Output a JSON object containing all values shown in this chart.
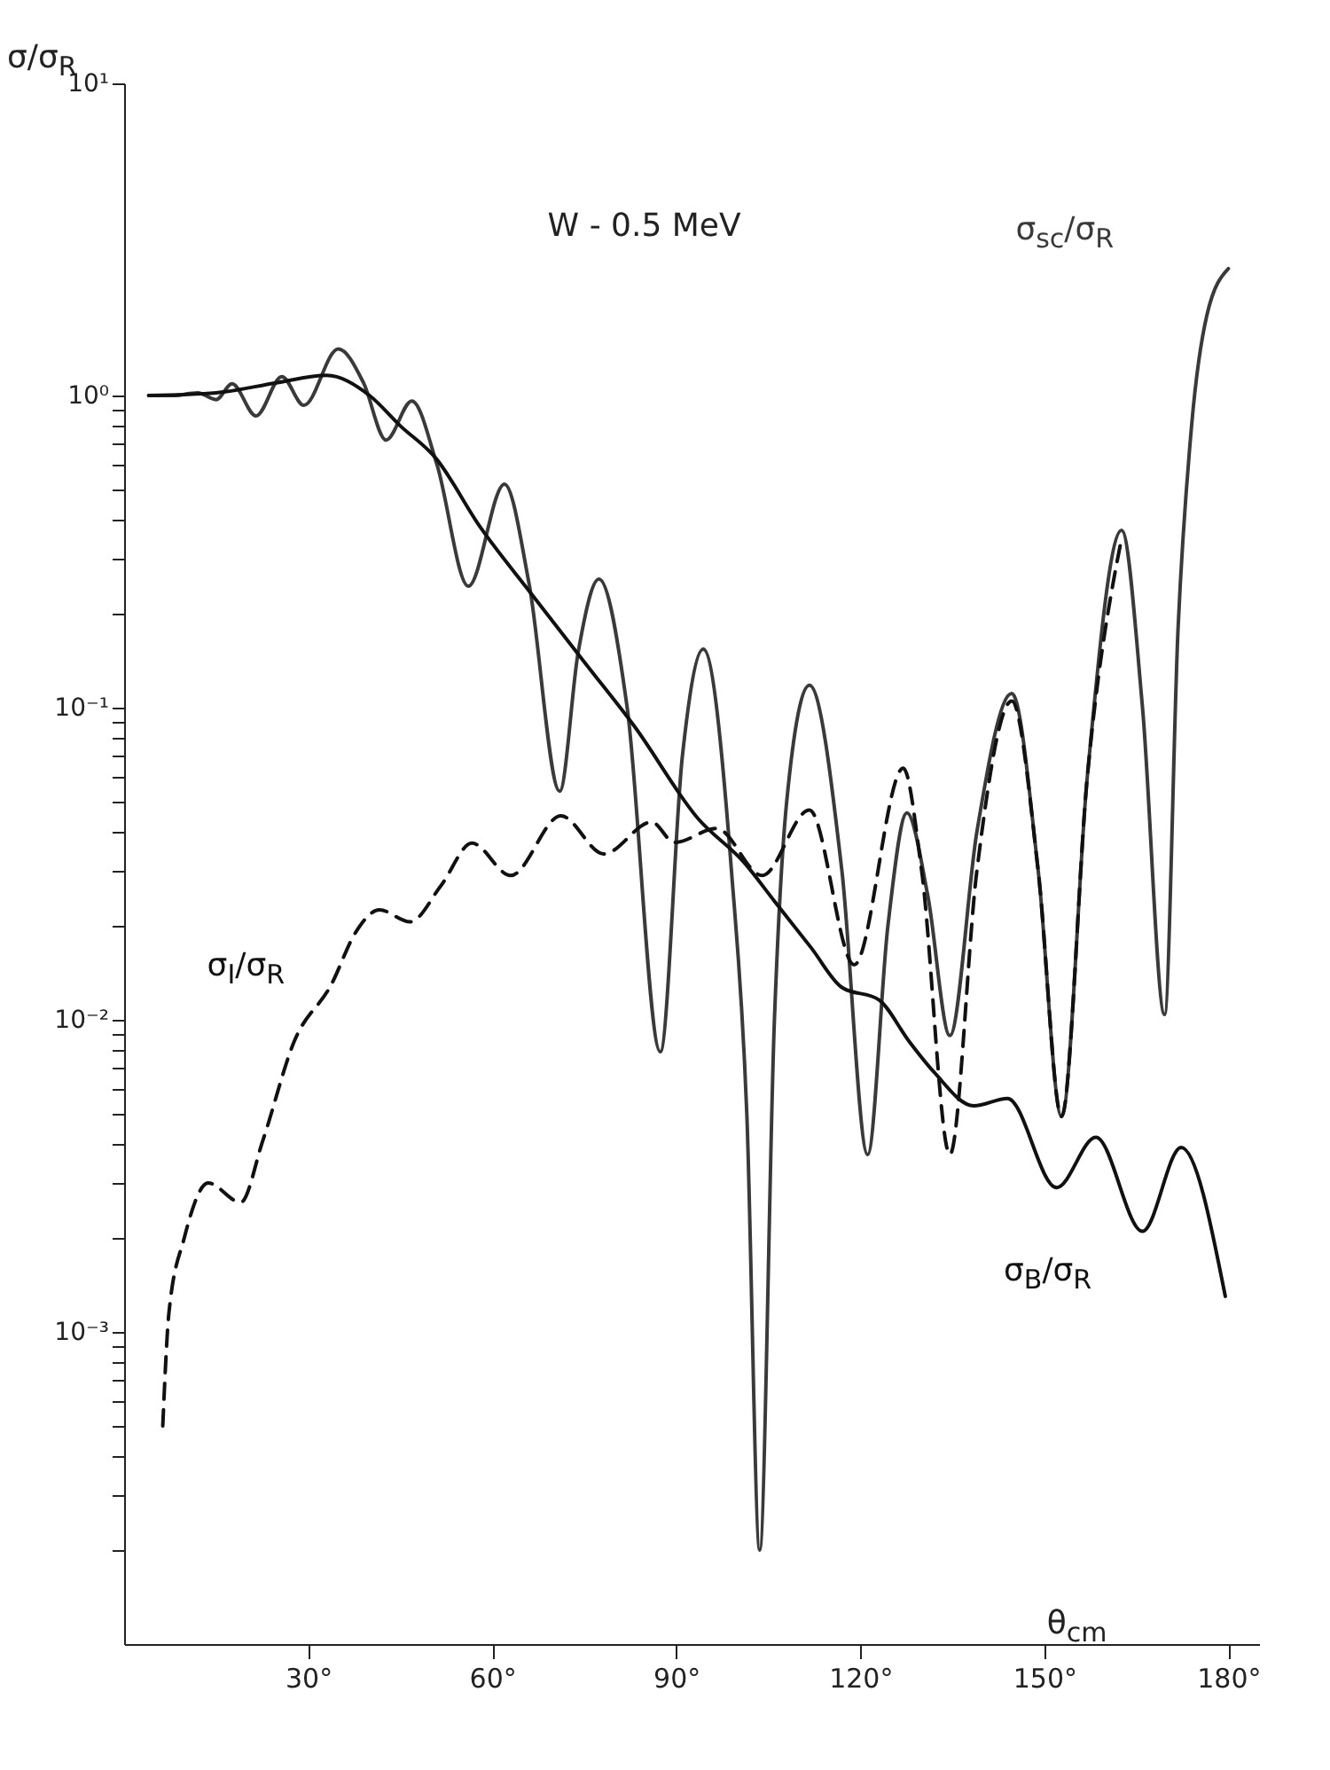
{
  "chart_data": {
    "type": "line",
    "title": "W - 0.5 MeV",
    "xlabel": "θ$_{cm}$",
    "ylabel": "σ/σ$_{R}$",
    "log": "y",
    "grid": false,
    "xlim": [
      0,
      185
    ],
    "ylim": [
      0.0001,
      10
    ],
    "xticks": [
      {
        "value": 30,
        "label": "30°"
      },
      {
        "value": 60,
        "label": "60°"
      },
      {
        "value": 90,
        "label": "90°"
      },
      {
        "value": 120,
        "label": "120°"
      },
      {
        "value": 150,
        "label": "150°"
      },
      {
        "value": 180,
        "label": "180°"
      }
    ],
    "yticks": [
      {
        "value": 0.0002,
        "label": null
      },
      {
        "value": 0.0003,
        "label": null
      },
      {
        "value": 0.0004,
        "label": null
      },
      {
        "value": 0.0005,
        "label": null
      },
      {
        "value": 0.0006,
        "label": null
      },
      {
        "value": 0.0007,
        "label": null
      },
      {
        "value": 0.0008,
        "label": null
      },
      {
        "value": 0.0009,
        "label": null
      },
      {
        "value": 0.001,
        "label": "10⁻³"
      },
      {
        "value": 0.002,
        "label": null
      },
      {
        "value": 0.003,
        "label": null
      },
      {
        "value": 0.004,
        "label": null
      },
      {
        "value": 0.005,
        "label": null
      },
      {
        "value": 0.006,
        "label": null
      },
      {
        "value": 0.007,
        "label": null
      },
      {
        "value": 0.008,
        "label": null
      },
      {
        "value": 0.009,
        "label": null
      },
      {
        "value": 0.01,
        "label": "10⁻²"
      },
      {
        "value": 0.02,
        "label": null
      },
      {
        "value": 0.03,
        "label": null
      },
      {
        "value": 0.04,
        "label": null
      },
      {
        "value": 0.05,
        "label": null
      },
      {
        "value": 0.06,
        "label": null
      },
      {
        "value": 0.07,
        "label": null
      },
      {
        "value": 0.08,
        "label": null
      },
      {
        "value": 0.09,
        "label": null
      },
      {
        "value": 0.1,
        "label": "10⁻¹"
      },
      {
        "value": 0.2,
        "label": null
      },
      {
        "value": 0.3,
        "label": null
      },
      {
        "value": 0.4,
        "label": null
      },
      {
        "value": 0.5,
        "label": null
      },
      {
        "value": 0.6,
        "label": null
      },
      {
        "value": 0.7,
        "label": null
      },
      {
        "value": 0.8,
        "label": null
      },
      {
        "value": 0.9,
        "label": null
      },
      {
        "value": 1,
        "label": "10⁰"
      },
      {
        "value": 10,
        "label": "10¹"
      }
    ],
    "series": [
      {
        "name": "σ$_{sc}$/σ$_{R}$",
        "color": "#3a3a3a",
        "line_style": "solid",
        "x": [
          4,
          8,
          12,
          15,
          17.6,
          21.5,
          25.7,
          29.3,
          34.9,
          39,
          42.7,
          46.9,
          51,
          56.1,
          62,
          66,
          71,
          74,
          77.4,
          82,
          87.4,
          91,
          94.4,
          99,
          101.5,
          103.6,
          106,
          108,
          111.7,
          117,
          121.2,
          124.5,
          127.6,
          131,
          134.6,
          139,
          144.7,
          149,
          152.8,
          157,
          162.6,
          166,
          169.6,
          171.8,
          174,
          176.5,
          180
        ],
        "values": [
          1.0,
          1.0,
          1.02,
          0.97,
          1.09,
          0.86,
          1.15,
          0.93,
          1.41,
          1.1,
          0.72,
          0.96,
          0.6,
          0.245,
          0.52,
          0.25,
          0.054,
          0.15,
          0.258,
          0.1,
          0.0079,
          0.07,
          0.154,
          0.03,
          0.005,
          0.0002,
          0.01,
          0.05,
          0.118,
          0.03,
          0.0037,
          0.02,
          0.046,
          0.025,
          0.0089,
          0.04,
          0.111,
          0.03,
          0.0049,
          0.06,
          0.37,
          0.1,
          0.0104,
          0.18,
          0.8,
          1.81,
          2.55
        ]
      },
      {
        "name": "σ$_{B}$/σ$_{R}$",
        "color": "#111111",
        "line_style": "solid",
        "x": [
          4,
          15,
          25,
          33,
          40,
          45,
          50.8,
          58,
          66.5,
          75,
          83.2,
          93.6,
          101,
          106,
          112,
          117,
          123,
          128,
          132,
          138.5,
          144,
          152,
          158.4,
          166,
          172.3,
          179.5
        ],
        "values": [
          1.0,
          1.02,
          1.1,
          1.16,
          1.0,
          0.8,
          0.63,
          0.38,
          0.23,
          0.14,
          0.087,
          0.044,
          0.032,
          0.024,
          0.017,
          0.0127,
          0.0116,
          0.0085,
          0.0068,
          0.0053,
          0.0056,
          0.0029,
          0.0042,
          0.0021,
          0.0039,
          0.0013
        ]
      },
      {
        "name": "σ$_{I}$/σ$_{R}$",
        "color": "#111111",
        "line_style": "dashed",
        "x": [
          6.3,
          7.3,
          9.8,
          13.7,
          19,
          22.6,
          27.7,
          33.8,
          37.7,
          41.6,
          46.6,
          51.7,
          56.7,
          63,
          71.2,
          78.2,
          86,
          89.7,
          96.6,
          104,
          111.7,
          119,
          127,
          130,
          134.6,
          139,
          144.7,
          149,
          152.8,
          157,
          162.6
        ],
        "values": [
          0.0005,
          0.00115,
          0.002,
          0.003,
          0.0026,
          0.0041,
          0.0085,
          0.013,
          0.019,
          0.0225,
          0.0206,
          0.027,
          0.0368,
          0.029,
          0.045,
          0.034,
          0.043,
          0.037,
          0.041,
          0.029,
          0.047,
          0.015,
          0.064,
          0.03,
          0.0037,
          0.03,
          0.105,
          0.03,
          0.0049,
          0.06,
          0.35
        ]
      }
    ]
  }
}
